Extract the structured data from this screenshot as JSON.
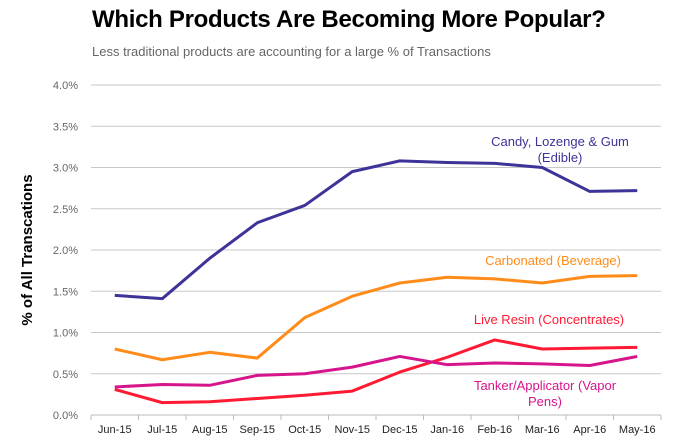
{
  "chart_data": {
    "type": "line",
    "title": "Which Products Are Becoming More Popular?",
    "subtitle": "Less traditional products are accounting for a large % of Transactions",
    "xlabel": "",
    "ylabel": "% of All Transcations",
    "ylim": [
      0,
      4.0
    ],
    "yticks": [
      "0.0%",
      "0.5%",
      "1.0%",
      "1.5%",
      "2.0%",
      "2.5%",
      "3.0%",
      "3.5%",
      "4.0%"
    ],
    "grid": true,
    "categories": [
      "Jun-15",
      "Jul-15",
      "Aug-15",
      "Sep-15",
      "Oct-15",
      "Nov-15",
      "Dec-15",
      "Jan-16",
      "Feb-16",
      "Mar-16",
      "Apr-16",
      "May-16"
    ],
    "series": [
      {
        "name": "Candy, Lozenge & Gum (Edible)",
        "label_lines": [
          "Candy, Lozenge & Gum",
          "(Edible)"
        ],
        "color": "#3d3399",
        "values": [
          1.45,
          1.41,
          1.9,
          2.33,
          2.54,
          2.95,
          3.08,
          3.06,
          3.05,
          3.0,
          2.71,
          2.72
        ]
      },
      {
        "name": "Carbonated (Beverage)",
        "label_lines": [
          "Carbonated (Beverage)"
        ],
        "color": "#ff8c1a",
        "values": [
          0.8,
          0.67,
          0.76,
          0.69,
          1.18,
          1.44,
          1.6,
          1.67,
          1.65,
          1.6,
          1.68,
          1.69
        ]
      },
      {
        "name": "Live Resin (Concentrates)",
        "label_lines": [
          "Live Resin (Concentrates)"
        ],
        "color": "#ff1a33",
        "values": [
          0.31,
          0.15,
          0.16,
          0.2,
          0.24,
          0.29,
          0.52,
          0.7,
          0.91,
          0.8,
          0.81,
          0.82
        ]
      },
      {
        "name": "Tanker/Applicator (Vapor Pens)",
        "label_lines": [
          "Tanker/Applicator (Vapor",
          "Pens)"
        ],
        "color": "#d6158c",
        "values": [
          0.34,
          0.37,
          0.36,
          0.48,
          0.5,
          0.58,
          0.71,
          0.61,
          0.63,
          0.62,
          0.6,
          0.71
        ]
      }
    ]
  }
}
